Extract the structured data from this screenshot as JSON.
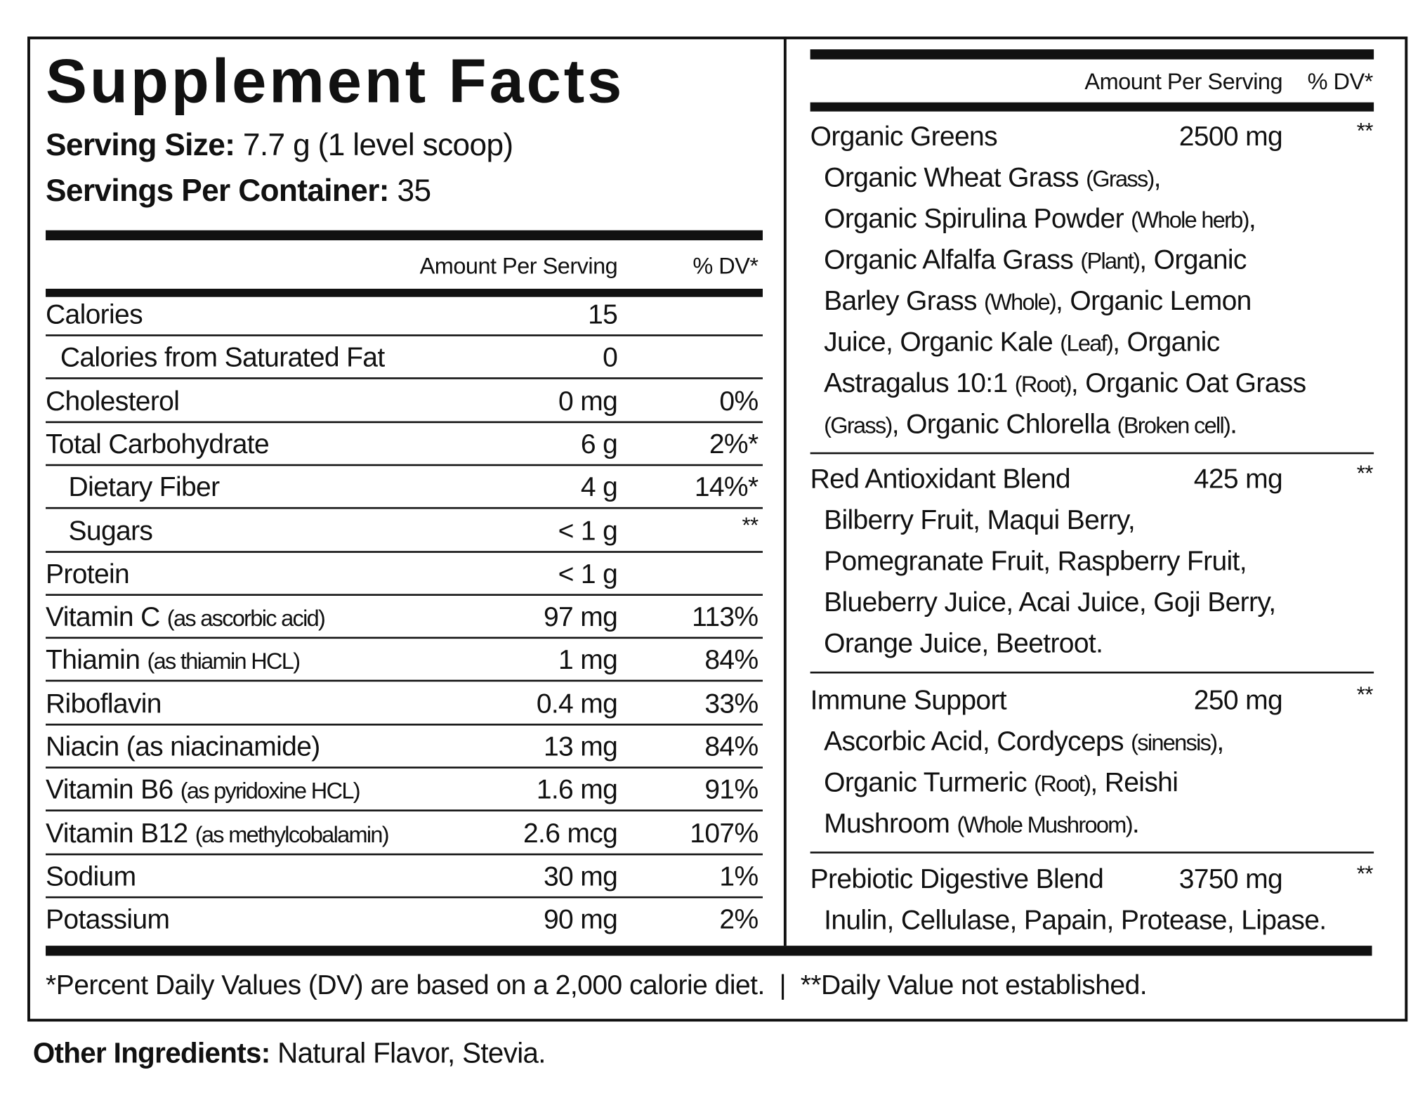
{
  "title": "Supplement Facts",
  "serving_size": {
    "label": "Serving Size:",
    "value": "7.7 g (1 level scoop)"
  },
  "servings_per_container": {
    "label": "Servings Per Container:",
    "value": "35"
  },
  "left_header": {
    "amount": "Amount Per Serving",
    "dv": "% DV*"
  },
  "nutrients": [
    {
      "name": "Calories",
      "note": "",
      "amount": "15",
      "dv": "",
      "indent": 0
    },
    {
      "name": "Calories from Saturated Fat",
      "note": "",
      "amount": "0",
      "dv": "",
      "indent": 1
    },
    {
      "name": "Cholesterol",
      "note": "",
      "amount": "0 mg",
      "dv": "0%",
      "indent": 0
    },
    {
      "name": "Total Carbohydrate",
      "note": "",
      "amount": "6 g",
      "dv": "2%*",
      "indent": 0
    },
    {
      "name": "Dietary Fiber",
      "note": "",
      "amount": "4 g",
      "dv": "14%*",
      "indent": 2
    },
    {
      "name": "Sugars",
      "note": "",
      "amount": "< 1 g",
      "dv": "**",
      "indent": 2
    },
    {
      "name": "Protein",
      "note": "",
      "amount": "< 1 g",
      "dv": "",
      "indent": 0
    },
    {
      "name": "Vitamin C",
      "note": "(as ascorbic acid)",
      "amount": "97 mg",
      "dv": "113%",
      "indent": 0
    },
    {
      "name": "Thiamin",
      "note": "(as thiamin HCL)",
      "amount": "1 mg",
      "dv": "84%",
      "indent": 0
    },
    {
      "name": "Riboflavin",
      "note": "",
      "amount": "0.4 mg",
      "dv": "33%",
      "indent": 0
    },
    {
      "name": "Niacin (as niacinamide)",
      "note": "",
      "amount": "13 mg",
      "dv": "84%",
      "indent": 0
    },
    {
      "name": "Vitamin B6",
      "note": "(as pyridoxine HCL)",
      "amount": "1.6 mg",
      "dv": "91%",
      "indent": 0
    },
    {
      "name": "Vitamin B12",
      "note": "(as methylcobalamin)",
      "amount": "2.6 mcg",
      "dv": "107%",
      "indent": 0
    },
    {
      "name": "Sodium",
      "note": "",
      "amount": "30 mg",
      "dv": "1%",
      "indent": 0
    },
    {
      "name": "Potassium",
      "note": "",
      "amount": "90 mg",
      "dv": "2%",
      "indent": 0
    }
  ],
  "right_header": {
    "amount": "Amount Per Serving",
    "dv": "% DV*"
  },
  "blends": [
    {
      "name": "Organic Greens",
      "amount": "2500 mg",
      "dv": "**",
      "lines": [
        [
          {
            "t": "Organic Wheat Grass "
          },
          {
            "t": "(Grass)",
            "c": true
          },
          {
            "t": ","
          }
        ],
        [
          {
            "t": "Organic Spirulina Powder "
          },
          {
            "t": "(Whole herb)",
            "c": true
          },
          {
            "t": ","
          }
        ],
        [
          {
            "t": "Organic Alfalfa Grass "
          },
          {
            "t": "(Plant)",
            "c": true
          },
          {
            "t": ", Organic"
          }
        ],
        [
          {
            "t": "Barley Grass "
          },
          {
            "t": "(Whole)",
            "c": true
          },
          {
            "t": ", Organic Lemon"
          }
        ],
        [
          {
            "t": "Juice, Organic Kale "
          },
          {
            "t": "(Leaf)",
            "c": true
          },
          {
            "t": ", Organic"
          }
        ],
        [
          {
            "t": "Astragalus 10:1 "
          },
          {
            "t": "(Root)",
            "c": true
          },
          {
            "t": ", Organic Oat Grass"
          }
        ],
        [
          {
            "t": "(Grass)",
            "c": true
          },
          {
            "t": ", Organic Chlorella "
          },
          {
            "t": "(Broken cell)",
            "c": true
          },
          {
            "t": "."
          }
        ]
      ]
    },
    {
      "name": "Red Antioxidant Blend",
      "amount": "425 mg",
      "dv": "**",
      "lines": [
        [
          {
            "t": "Bilberry Fruit, Maqui Berry,"
          }
        ],
        [
          {
            "t": "Pomegranate Fruit, Raspberry Fruit,"
          }
        ],
        [
          {
            "t": "Blueberry Juice, Acai Juice, Goji Berry,"
          }
        ],
        [
          {
            "t": "Orange Juice, Beetroot."
          }
        ]
      ]
    },
    {
      "name": "Immune Support",
      "amount": "250 mg",
      "dv": "**",
      "lines": [
        [
          {
            "t": "Ascorbic Acid, Cordyceps "
          },
          {
            "t": "(sinensis)",
            "c": true
          },
          {
            "t": ","
          }
        ],
        [
          {
            "t": "Organic Turmeric "
          },
          {
            "t": "(Root)",
            "c": true
          },
          {
            "t": ", Reishi"
          }
        ],
        [
          {
            "t": "Mushroom "
          },
          {
            "t": "(Whole Mushroom)",
            "c": true
          },
          {
            "t": "."
          }
        ]
      ]
    },
    {
      "name": "Prebiotic Digestive Blend",
      "amount": "3750 mg",
      "dv": "**",
      "lines": [
        [
          {
            "t": "Inulin, Cellulase, Papain, Protease, Lipase."
          }
        ]
      ]
    }
  ],
  "footnote": "*Percent Daily Values (DV) are based on a 2,000 calorie diet.  |  **Daily Value not established.",
  "other_ingredients": {
    "label": "Other Ingredients:",
    "value": "Natural Flavor, Stevia."
  }
}
